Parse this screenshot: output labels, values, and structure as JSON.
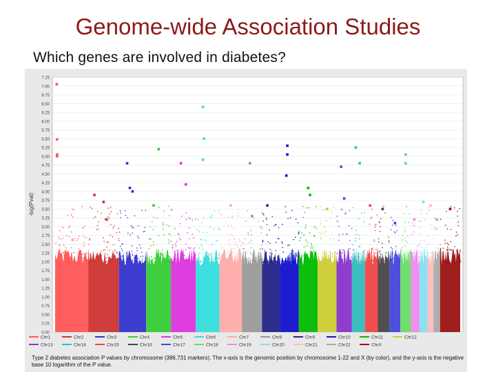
{
  "slide": {
    "title": "Genome-wide Association Studies",
    "subtitle": "Which genes are involved in diabetes?"
  },
  "figure": {
    "caption": "Type 2 diabetes association P values by chromosome (386,731 markers). The x-axis is the genomic position by chromosome 1-22 and X (by color), and the y-axis is the negative base 10 logarithm of the P value."
  },
  "chart_data": {
    "type": "scatter",
    "title": "",
    "xlabel": "",
    "ylabel": "-log(Pval)",
    "ylim": [
      0,
      7.25
    ],
    "yticks": [
      "0.00",
      "0.25",
      "0.50",
      "0.75",
      "1.00",
      "1.25",
      "1.50",
      "1.75",
      "2.00",
      "2.25",
      "2.50",
      "2.75",
      "3.00",
      "3.25",
      "3.50",
      "3.75",
      "4.00",
      "4.25",
      "4.50",
      "4.75",
      "5.00",
      "5.25",
      "5.50",
      "5.75",
      "6.00",
      "6.25",
      "6.50",
      "6.75",
      "7.00",
      "7.25"
    ],
    "grid": true,
    "legend_position": "bottom",
    "series": [
      {
        "name": "Chr1",
        "color": "#ff5555",
        "points": [
          [
            0.05,
            7.05
          ],
          [
            0.06,
            5.48
          ],
          [
            0.06,
            5.05
          ],
          [
            0.06,
            5.0
          ]
        ]
      },
      {
        "name": "Chr2",
        "color": "#cc3333",
        "points": [
          [
            0.2,
            3.9
          ],
          [
            0.5,
            3.7
          ],
          [
            0.6,
            3.2
          ]
        ]
      },
      {
        "name": "Chr3",
        "color": "#3333cc",
        "points": [
          [
            0.3,
            4.8
          ],
          [
            0.4,
            4.1
          ],
          [
            0.5,
            4.0
          ]
        ]
      },
      {
        "name": "Chr4",
        "color": "#33cc33",
        "points": [
          [
            0.5,
            5.2
          ],
          [
            0.3,
            3.6
          ]
        ]
      },
      {
        "name": "Chr5",
        "color": "#dd33dd",
        "points": [
          [
            0.4,
            4.8
          ],
          [
            0.6,
            4.2
          ]
        ]
      },
      {
        "name": "Chr6",
        "color": "#33dddd",
        "points": [
          [
            0.3,
            6.4
          ],
          [
            0.35,
            5.5
          ],
          [
            0.3,
            4.9
          ]
        ]
      },
      {
        "name": "Chr7",
        "color": "#ffaaaa",
        "points": [
          [
            0.5,
            3.6
          ]
        ]
      },
      {
        "name": "Chr8",
        "color": "#999999",
        "points": [
          [
            0.4,
            4.8
          ],
          [
            0.5,
            3.3
          ]
        ]
      },
      {
        "name": "Chr9",
        "color": "#222288",
        "points": [
          [
            0.3,
            3.6
          ]
        ]
      },
      {
        "name": "Chr10",
        "color": "#1111cc",
        "points": [
          [
            0.4,
            5.3
          ],
          [
            0.4,
            5.05
          ],
          [
            0.35,
            4.45
          ]
        ]
      },
      {
        "name": "Chr11",
        "color": "#00bb00",
        "points": [
          [
            0.5,
            4.1
          ],
          [
            0.6,
            3.9
          ]
        ]
      },
      {
        "name": "Chr12",
        "color": "#cccc33",
        "points": [
          [
            0.5,
            3.5
          ]
        ]
      },
      {
        "name": "Chr13",
        "color": "#8833cc",
        "points": [
          [
            0.3,
            4.7
          ],
          [
            0.5,
            3.8
          ]
        ]
      },
      {
        "name": "Chr14",
        "color": "#33bbbb",
        "points": [
          [
            0.3,
            5.25
          ],
          [
            0.6,
            4.8
          ]
        ]
      },
      {
        "name": "Chr15",
        "color": "#ee4444",
        "points": [
          [
            0.4,
            3.6
          ]
        ]
      },
      {
        "name": "Chr16",
        "color": "#444444",
        "points": [
          [
            0.4,
            3.5
          ]
        ]
      },
      {
        "name": "Chr17",
        "color": "#4444dd",
        "points": [
          [
            0.5,
            3.1
          ]
        ]
      },
      {
        "name": "Chr18",
        "color": "#66dd66",
        "points": [
          [
            0.5,
            5.05
          ],
          [
            0.5,
            4.8
          ]
        ]
      },
      {
        "name": "Chr19",
        "color": "#ee88ee",
        "points": [
          [
            0.4,
            3.2
          ]
        ]
      },
      {
        "name": "Chr20",
        "color": "#88ddee",
        "points": [
          [
            0.5,
            3.7
          ]
        ]
      },
      {
        "name": "Chr21",
        "color": "#ffbbbb",
        "points": [
          [
            0.5,
            3.6
          ]
        ]
      },
      {
        "name": "Chr22",
        "color": "#aaaaaa",
        "points": [
          [
            0.5,
            3.2
          ]
        ]
      },
      {
        "name": "ChrX",
        "color": "#991111",
        "points": [
          [
            0.5,
            3.5
          ]
        ]
      }
    ]
  }
}
